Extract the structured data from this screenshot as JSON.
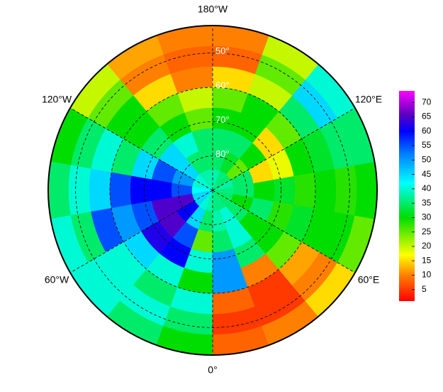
{
  "chart_data": {
    "type": "polar_heatmap",
    "lat_bins": [
      42,
      48,
      54,
      60,
      66,
      72,
      78,
      84,
      90
    ],
    "lon_bins": [
      -180,
      -160,
      -140,
      -120,
      -100,
      -80,
      -60,
      -40,
      -20,
      0,
      20,
      40,
      60,
      80,
      100,
      120,
      140,
      160,
      180
    ],
    "values": [
      [
        10,
        12,
        20,
        30,
        35,
        40,
        40,
        35,
        30,
        8,
        10,
        15,
        25,
        30,
        35,
        40,
        20,
        10
      ],
      [
        8,
        10,
        25,
        35,
        40,
        35,
        40,
        40,
        35,
        5,
        5,
        10,
        30,
        28,
        35,
        45,
        25,
        8
      ],
      [
        10,
        15,
        30,
        40,
        45,
        55,
        40,
        35,
        40,
        8,
        5,
        12,
        30,
        30,
        32,
        35,
        20,
        15
      ],
      [
        20,
        25,
        30,
        35,
        55,
        50,
        45,
        40,
        30,
        50,
        10,
        25,
        32,
        28,
        30,
        25,
        30,
        25
      ],
      [
        25,
        30,
        35,
        45,
        60,
        55,
        62,
        60,
        40,
        50,
        35,
        30,
        28,
        32,
        18,
        15,
        30,
        30
      ],
      [
        35,
        40,
        45,
        55,
        60,
        65,
        65,
        55,
        25,
        35,
        40,
        30,
        35,
        30,
        15,
        30,
        35,
        35
      ],
      [
        35,
        35,
        45,
        50,
        55,
        65,
        60,
        45,
        35,
        38,
        40,
        35,
        30,
        35,
        35,
        25,
        32,
        35
      ],
      [
        38,
        38,
        40,
        40,
        42,
        45,
        45,
        40,
        38,
        36,
        36,
        35,
        35,
        36,
        38,
        35,
        36,
        38
      ]
    ],
    "lat_ticks": [
      {
        "value": 50,
        "label": "50°"
      },
      {
        "value": 60,
        "label": "60°"
      },
      {
        "value": 70,
        "label": "70°"
      },
      {
        "value": 80,
        "label": "80°"
      }
    ],
    "lon_ticks": [
      {
        "value": 180,
        "label": "180°W"
      },
      {
        "value": -120,
        "label": "120°W"
      },
      {
        "value": -60,
        "label": "60°W"
      },
      {
        "value": 0,
        "label": "0°"
      },
      {
        "value": 60,
        "label": "60°E"
      },
      {
        "value": 120,
        "label": "120°E"
      }
    ],
    "clim": [
      1,
      74
    ],
    "cticks": [
      5,
      10,
      15,
      20,
      25,
      30,
      35,
      40,
      45,
      50,
      55,
      60,
      65,
      70
    ],
    "colormap": [
      [
        1,
        "#ff0000"
      ],
      [
        10,
        "#ff8000"
      ],
      [
        17,
        "#ffff00"
      ],
      [
        30,
        "#00dd00"
      ],
      [
        42,
        "#00ffff"
      ],
      [
        52,
        "#0080ff"
      ],
      [
        60,
        "#0000ff"
      ],
      [
        66,
        "#6000c0"
      ],
      [
        74,
        "#ff00ff"
      ]
    ],
    "grid": true
  }
}
